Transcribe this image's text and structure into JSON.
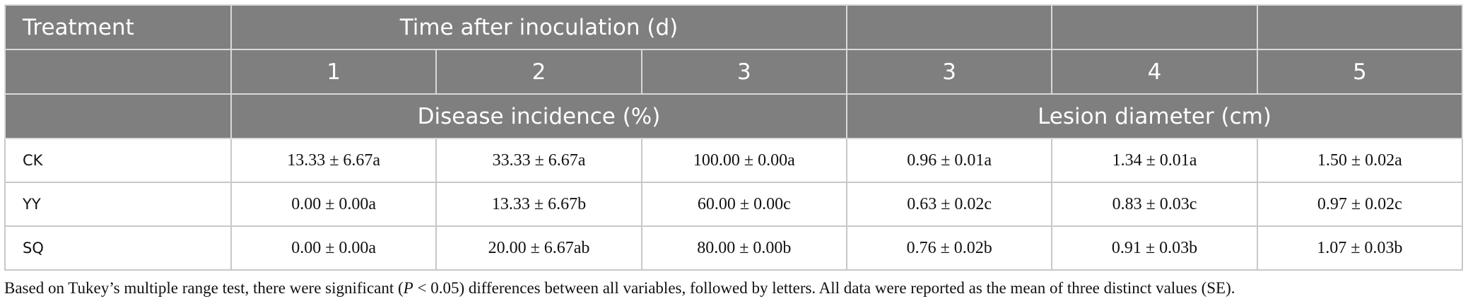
{
  "table": {
    "header": [
      [
        "Treatment",
        "Time after inoculation (d)"
      ],
      [
        "1",
        "2",
        "3",
        "3",
        "4",
        "5"
      ],
      [
        "Disease incidence (%)",
        "Lesion diameter (cm)"
      ]
    ],
    "rows": [
      [
        "CK",
        "13.33 ± 6.67a",
        "33.33 ± 6.67a",
        "100.00 ± 0.00a",
        "0.96 ± 0.01a",
        "1.34 ± 0.01a",
        "1.50 ± 0.02a"
      ],
      [
        "YY",
        "0.00 ± 0.00a",
        "13.33 ± 6.67b",
        "60.00 ± 0.00c",
        "0.63 ± 0.02c",
        "0.83 ± 0.03c",
        "0.97 ± 0.02c"
      ],
      [
        "SQ",
        "0.00 ± 0.00a",
        "20.00 ± 6.67ab",
        "80.00 ± 0.00b",
        "0.76 ± 0.02b",
        "0.91 ± 0.03b",
        "1.07 ± 0.03b"
      ]
    ]
  },
  "footnote": [
    "Based on Tukey’s multiple range test, there were significant (",
    "P",
    " < 0.05) differences between all variables, followed by letters. All data were reported as the mean of three distinct values (SE)."
  ]
}
